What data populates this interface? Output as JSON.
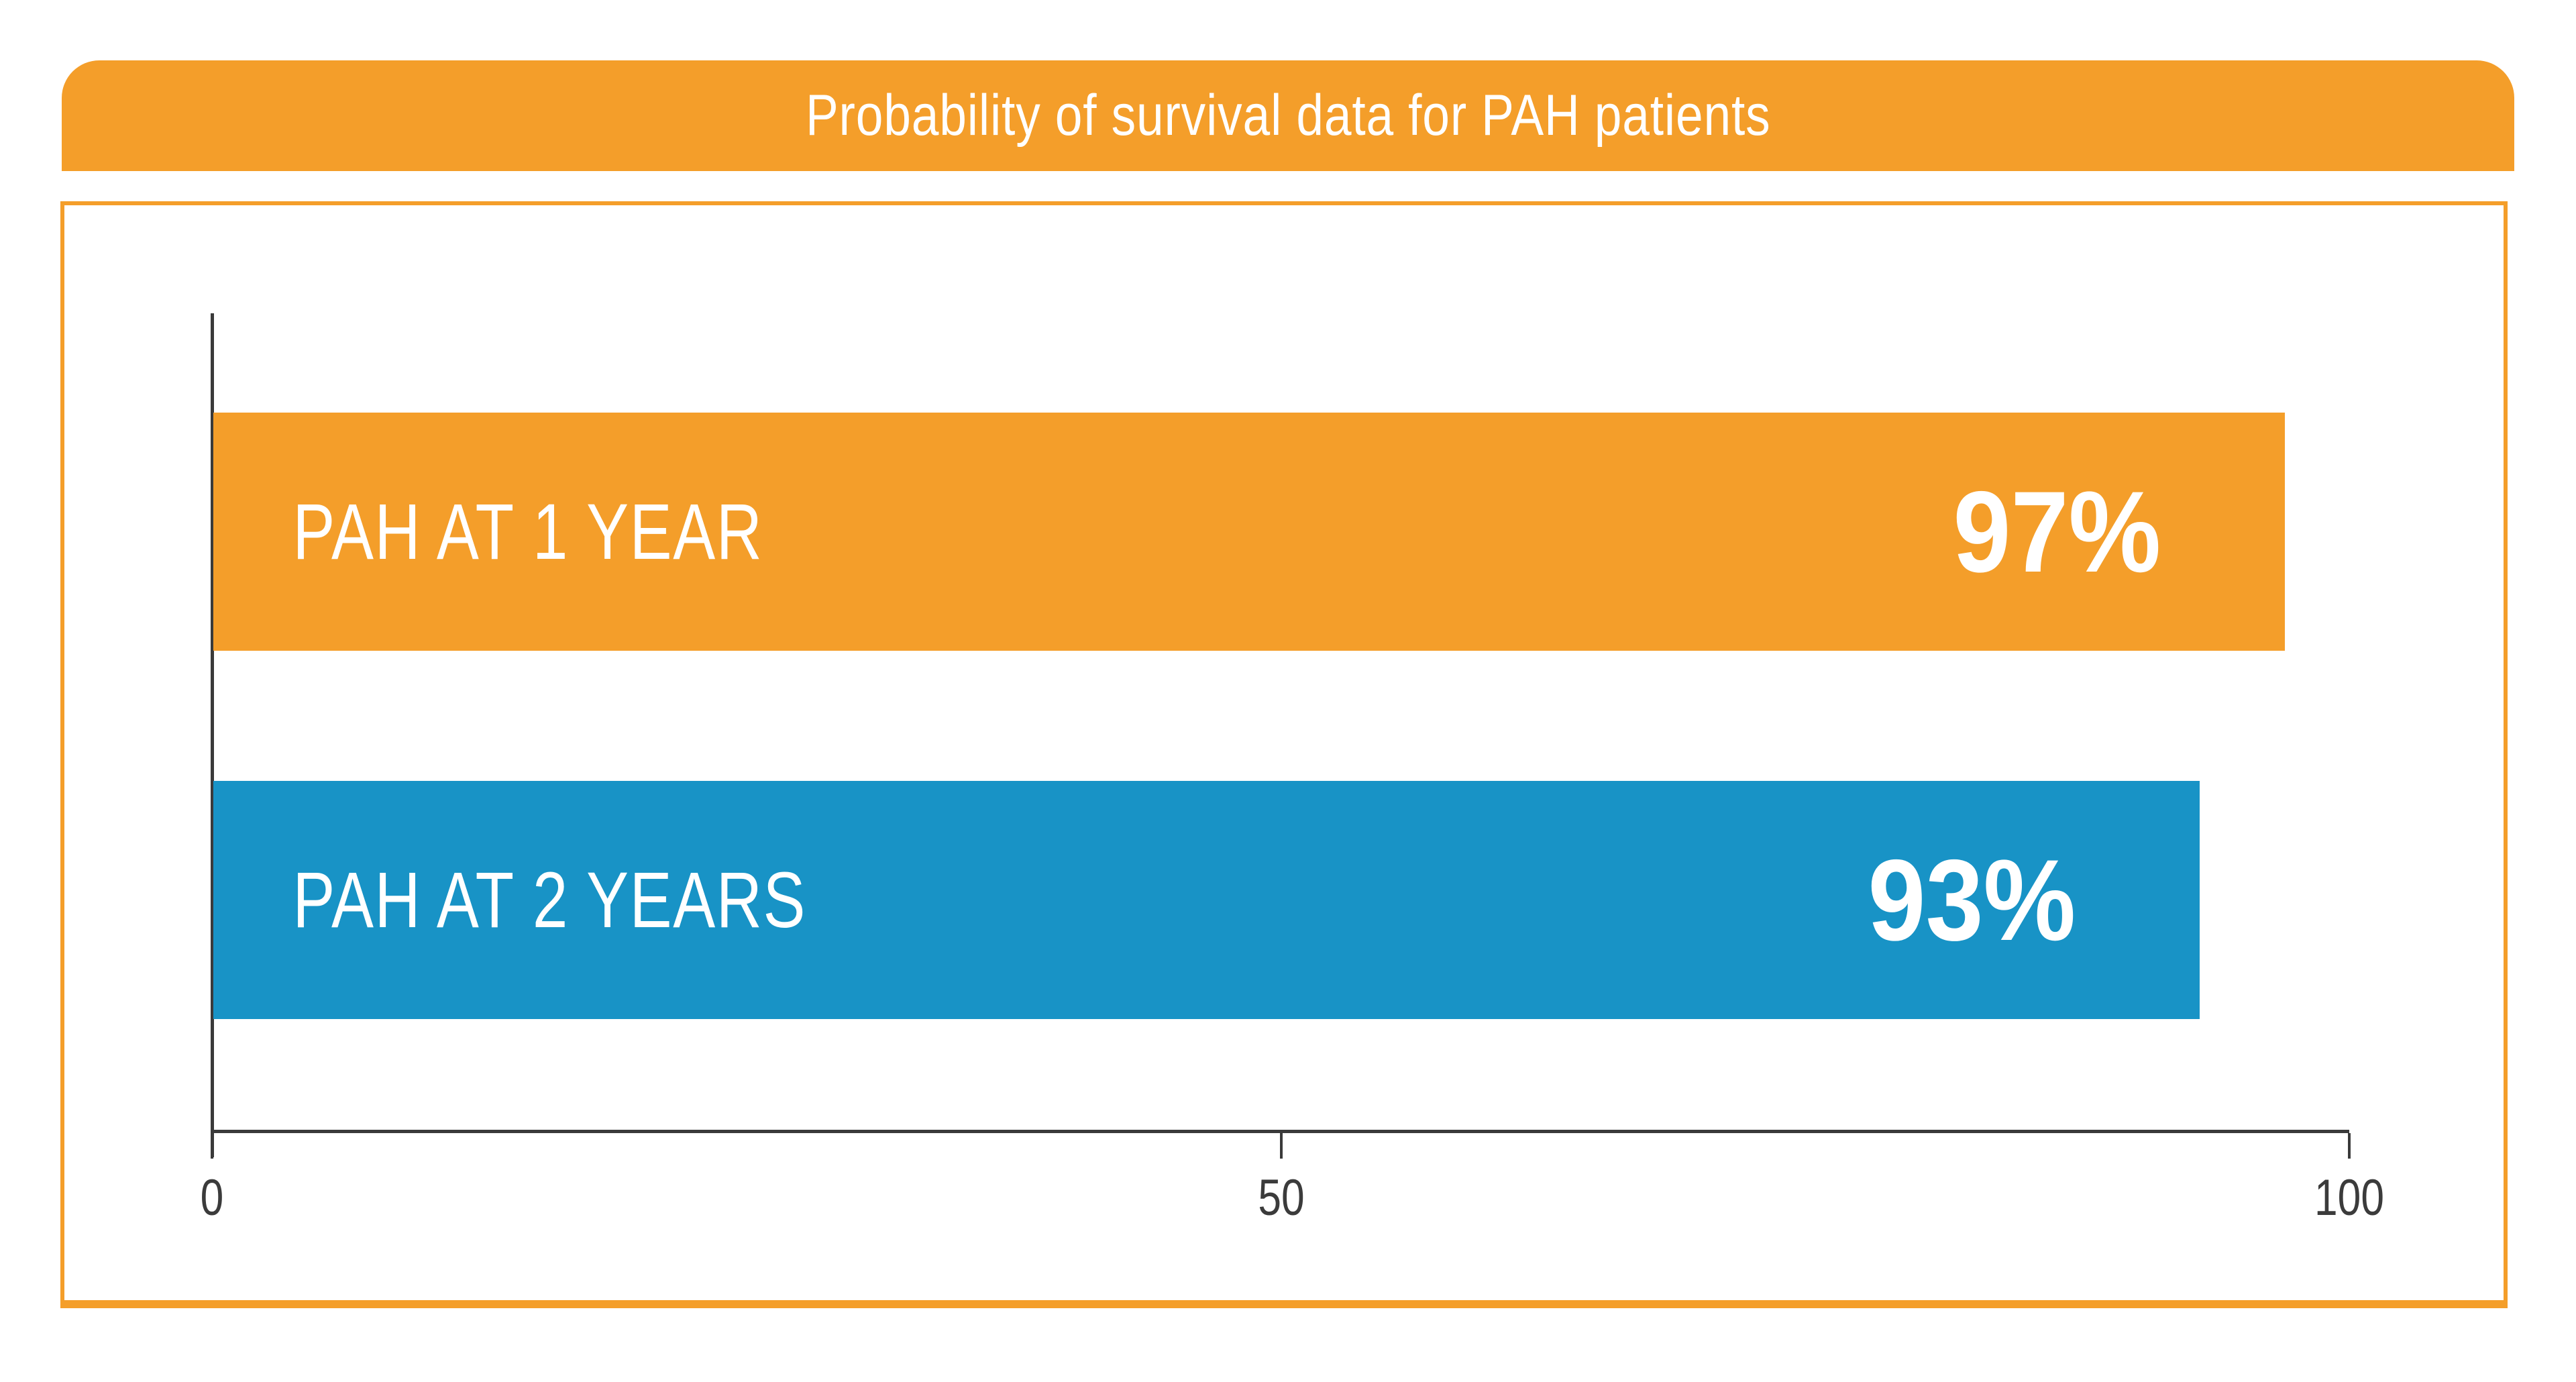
{
  "header": {
    "title": "Probability of survival data for PAH patients"
  },
  "chart_data": {
    "type": "bar",
    "orientation": "horizontal",
    "title": "Probability of survival data for PAH patients",
    "categories": [
      "PAH AT 1 YEAR",
      "PAH AT 2 YEARS"
    ],
    "values": [
      97,
      93
    ],
    "value_labels": [
      "97%",
      "93%"
    ],
    "series": [
      {
        "name": "Probability of survival",
        "values": [
          97,
          93
        ]
      }
    ],
    "bar_colors": [
      "#F49E2A",
      "#1893C6"
    ],
    "xlabel": "",
    "ylabel": "",
    "xlim": [
      0,
      100
    ],
    "x_ticks": [
      0,
      50,
      100
    ],
    "x_tick_labels": [
      "0",
      "50",
      "100"
    ],
    "grid": false,
    "legend": false
  },
  "colors": {
    "accent_orange": "#F49E2A",
    "accent_blue": "#1893C6",
    "axis": "#3A3A3A",
    "text_on_bars": "#FFFFFF",
    "tick_text": "#3B3B3B"
  }
}
